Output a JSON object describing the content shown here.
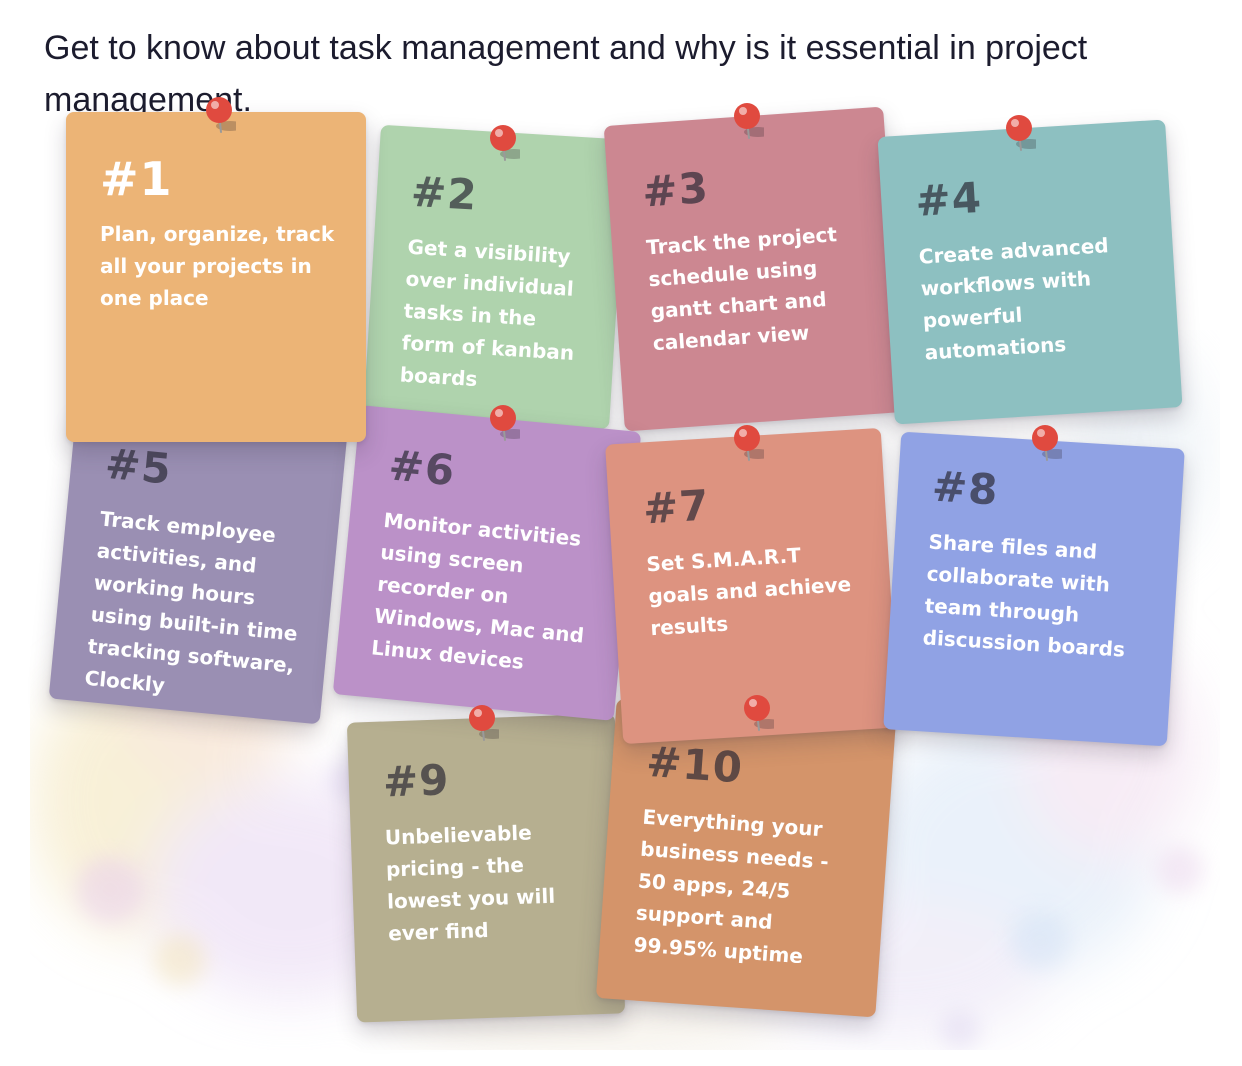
{
  "heading": "Get to know about task management and why is it essential in project management.",
  "notes": [
    {
      "number": "#1",
      "text": "Plan, organize, track all your projects in one place",
      "color": "#ECB476"
    },
    {
      "number": "#2",
      "text": "Get a visibility over individual tasks in the form of kanban boards",
      "color": "#AFD3AD"
    },
    {
      "number": "#3",
      "text": "Track the project schedule using gantt chart and calendar view",
      "color": "#CC8791"
    },
    {
      "number": "#4",
      "text": "Create advanced workflows with powerful automations",
      "color": "#8DC0C1"
    },
    {
      "number": "#5",
      "text": "Track employee activities, and working hours using built-in time tracking software, Clockly",
      "color": "#9A8FB3"
    },
    {
      "number": "#6",
      "text": "Monitor activities using screen recorder on Windows, Mac and Linux devices",
      "color": "#BB91C8"
    },
    {
      "number": "#7",
      "text": "Set S.M.A.R.T goals and achieve results",
      "color": "#DD9380"
    },
    {
      "number": "#8",
      "text": "Share files and collaborate with team through discussion boards",
      "color": "#90A2E4"
    },
    {
      "number": "#9",
      "text": "Unbelievable pricing - the lowest you will ever find",
      "color": "#B6AF90"
    },
    {
      "number": "#10",
      "text": "Everything your business needs - 50 apps, 24/5 support and 99.95% uptime",
      "color": "#D4946A"
    }
  ],
  "icons": {
    "pin": "pushpin-icon"
  },
  "colors": {
    "pin": "#E04A3F",
    "heading": "#1c1c2e"
  }
}
